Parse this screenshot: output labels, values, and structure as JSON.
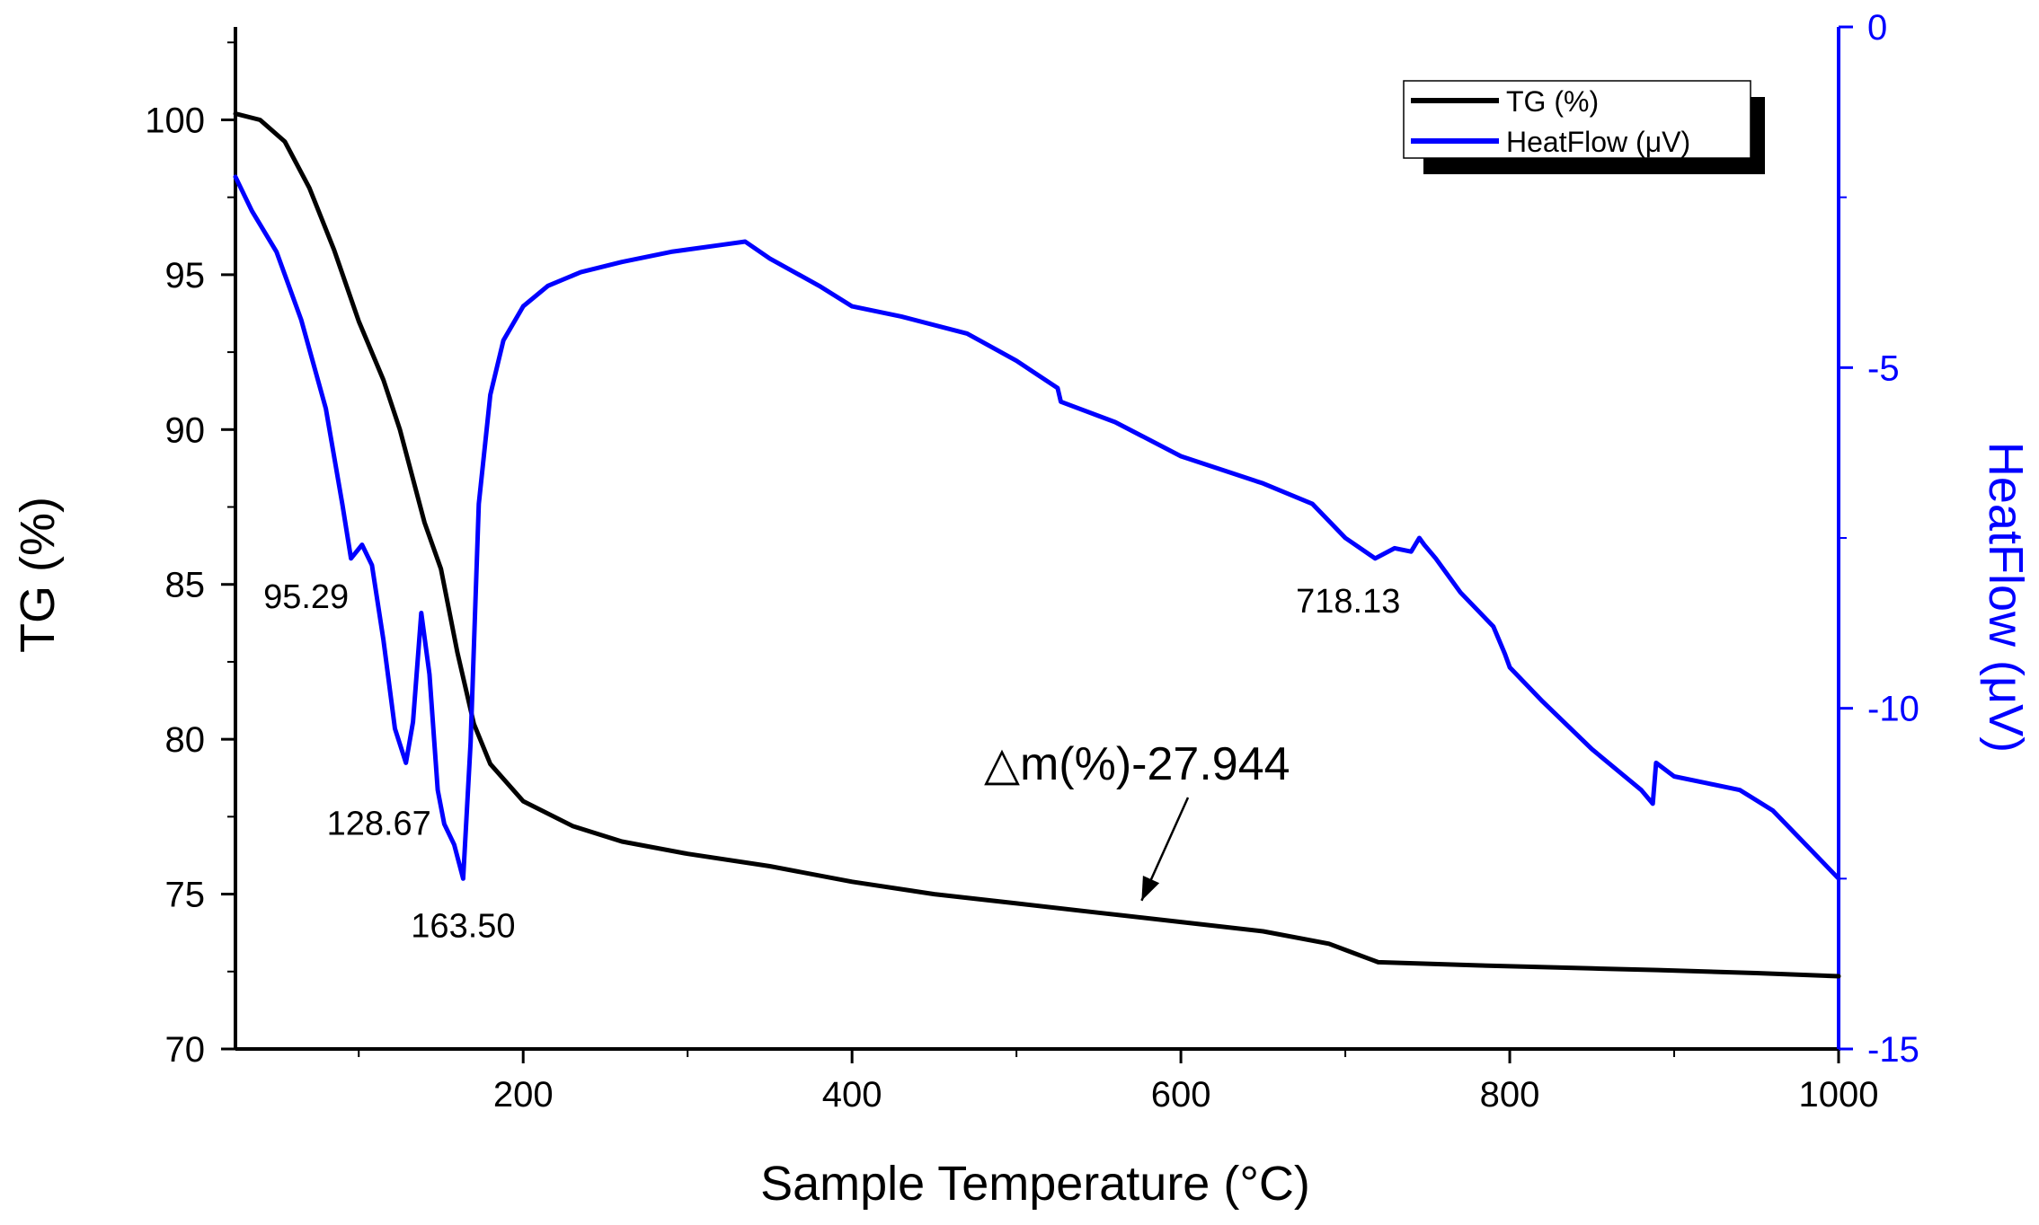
{
  "chart_data": {
    "type": "line",
    "title": "",
    "xlabel": "Sample Temperature (°C)",
    "ylabel": "TG (%)",
    "y2label": "HeatFlow (μV)",
    "xlim": [
      25,
      1000
    ],
    "ylim": [
      70,
      103
    ],
    "y2lim": [
      -15,
      0
    ],
    "x_ticks": [
      200,
      400,
      600,
      800,
      1000
    ],
    "y_ticks": [
      70,
      75,
      80,
      85,
      90,
      95,
      100
    ],
    "y2_ticks": [
      -15,
      -10,
      -5,
      0
    ],
    "x_tick_labels": [
      "200",
      "400",
      "600",
      "800",
      "1000"
    ],
    "y_tick_labels": [
      "70",
      "75",
      "80",
      "85",
      "90",
      "95",
      "100"
    ],
    "y2_tick_labels": [
      "-15",
      "-10",
      "-5",
      "0"
    ],
    "legend": {
      "position": "top-right",
      "entries": [
        {
          "name": "TG (%)",
          "color": "#000000"
        },
        {
          "name": "HeatFlow (μV)",
          "color": "#0000ff"
        }
      ]
    },
    "series": [
      {
        "name": "TG (%)",
        "axis": "left",
        "color": "#000000",
        "x": [
          25,
          40,
          55,
          70,
          85,
          100,
          115,
          125,
          140,
          150,
          160,
          170,
          180,
          200,
          230,
          260,
          300,
          350,
          400,
          450,
          500,
          550,
          600,
          650,
          690,
          705,
          720,
          780,
          850,
          890,
          950,
          1000
        ],
        "y": [
          100.2,
          100.0,
          99.3,
          97.8,
          95.8,
          93.5,
          91.6,
          90.0,
          87.0,
          85.5,
          82.8,
          80.5,
          79.2,
          78.0,
          77.2,
          76.7,
          76.3,
          75.9,
          75.4,
          75.0,
          74.7,
          74.4,
          74.1,
          73.8,
          73.4,
          73.1,
          72.8,
          72.7,
          72.6,
          72.55,
          72.45,
          72.35
        ]
      },
      {
        "name": "HeatFlow (μV)",
        "axis": "right",
        "color": "#0000ff",
        "x": [
          25,
          35,
          50,
          65,
          80,
          90,
          95.29,
          102,
          108,
          115,
          122,
          128.67,
          133,
          138,
          143,
          148,
          152,
          158,
          163.5,
          168,
          173,
          180,
          188,
          200,
          215,
          235,
          260,
          290,
          320,
          335,
          350,
          380,
          400,
          430,
          470,
          500,
          525,
          527,
          560,
          600,
          650,
          680,
          700,
          718.13,
          730,
          740,
          745,
          748,
          755,
          770,
          790,
          797,
          800,
          820,
          850,
          880,
          887,
          889,
          900,
          920,
          940,
          960,
          980,
          1000
        ],
        "y": [
          -2.2,
          -2.7,
          -3.3,
          -4.3,
          -5.6,
          -7.0,
          -7.8,
          -7.6,
          -7.9,
          -9.0,
          -10.3,
          -10.8,
          -10.2,
          -8.6,
          -9.5,
          -11.2,
          -11.7,
          -12.0,
          -12.5,
          -10.5,
          -7.0,
          -5.4,
          -4.6,
          -4.1,
          -3.8,
          -3.6,
          -3.45,
          -3.3,
          -3.2,
          -3.15,
          -3.4,
          -3.8,
          -4.1,
          -4.25,
          -4.5,
          -4.9,
          -5.3,
          -5.5,
          -5.8,
          -6.3,
          -6.7,
          -7.0,
          -7.5,
          -7.8,
          -7.65,
          -7.7,
          -7.5,
          -7.6,
          -7.8,
          -8.3,
          -8.8,
          -9.2,
          -9.4,
          -9.9,
          -10.6,
          -11.2,
          -11.4,
          -10.8,
          -11.0,
          -11.1,
          -11.2,
          -11.5,
          -12.0,
          -12.5
        ]
      }
    ],
    "annotations": [
      {
        "text": "95.29",
        "series": "HeatFlow (μV)",
        "x": 95.29,
        "y": -7.8
      },
      {
        "text": "128.67",
        "series": "HeatFlow (μV)",
        "x": 128.67,
        "y": -10.8
      },
      {
        "text": "163.50",
        "series": "HeatFlow (μV)",
        "x": 163.5,
        "y": -12.5
      },
      {
        "text": "718.13",
        "series": "HeatFlow (μV)",
        "x": 718.13,
        "y": -7.8
      },
      {
        "text": "△m(%)-27.944",
        "series": "TG (%)",
        "x": 575,
        "y": 74.5,
        "arrow": true
      }
    ]
  }
}
